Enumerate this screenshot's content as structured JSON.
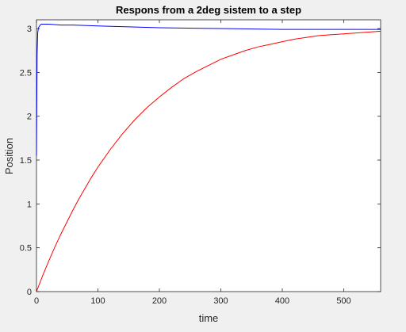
{
  "chart_data": {
    "type": "line",
    "title": "Respons from a 2deg sistem to a step",
    "xlabel": "time",
    "ylabel": "Position",
    "xlim": [
      0,
      560
    ],
    "ylim": [
      0,
      3.1
    ],
    "xticks": [
      0,
      100,
      200,
      300,
      400,
      500
    ],
    "xtick_labels": [
      "0",
      "100",
      "200",
      "300",
      "400",
      "500"
    ],
    "yticks": [
      0,
      0.5,
      1,
      1.5,
      2,
      2.5,
      3
    ],
    "ytick_labels": [
      "0",
      "0.5",
      "1",
      "1.5",
      "2",
      "2.5",
      "3"
    ],
    "grid": false,
    "legend": "none",
    "series": [
      {
        "color": "#0000ff",
        "x": [
          0,
          1,
          2,
          3,
          4,
          5,
          6,
          8,
          10,
          15,
          20,
          40,
          60,
          100,
          150,
          200,
          300,
          400,
          500,
          560
        ],
        "y": [
          1.55,
          2.7,
          2.95,
          3.0,
          3.02,
          3.03,
          3.04,
          3.05,
          3.05,
          3.05,
          3.05,
          3.04,
          3.04,
          3.03,
          3.02,
          3.01,
          3.0,
          2.99,
          2.99,
          2.99
        ]
      },
      {
        "color": "#ff0000",
        "x": [
          0,
          10,
          20,
          30,
          40,
          50,
          60,
          70,
          80,
          90,
          100,
          120,
          140,
          160,
          180,
          200,
          220,
          240,
          260,
          280,
          300,
          320,
          340,
          360,
          380,
          400,
          420,
          440,
          460,
          480,
          500,
          520,
          540,
          560
        ],
        "y": [
          0,
          0.18,
          0.35,
          0.51,
          0.66,
          0.8,
          0.94,
          1.07,
          1.19,
          1.31,
          1.42,
          1.62,
          1.8,
          1.96,
          2.1,
          2.22,
          2.33,
          2.43,
          2.51,
          2.58,
          2.65,
          2.7,
          2.75,
          2.79,
          2.82,
          2.85,
          2.88,
          2.9,
          2.92,
          2.93,
          2.94,
          2.95,
          2.96,
          2.97
        ]
      }
    ]
  }
}
